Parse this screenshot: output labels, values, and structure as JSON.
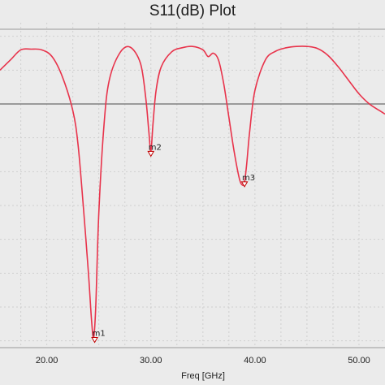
{
  "chart_data": {
    "type": "line",
    "title": "S11(dB) Plot",
    "xlabel": "Freq [GHz]",
    "ylabel": "",
    "xlim": [
      15.5,
      52.5
    ],
    "ylim": [
      -46,
      2
    ],
    "x_ticks": [
      {
        "value": 20,
        "label": "20.00"
      },
      {
        "value": 30,
        "label": "30.00"
      },
      {
        "value": 40,
        "label": "40.00"
      },
      {
        "value": 50,
        "label": "50.00"
      }
    ],
    "y_gridlines": [
      -45,
      -40,
      -35,
      -30,
      -25,
      -20,
      -15,
      -10,
      -5,
      0
    ],
    "reference_line": -10,
    "grid": true,
    "colors": {
      "trace": "#e8334b",
      "reference": "#808080",
      "marker": "#c00000",
      "grid": "#cfcfcf",
      "background": "#ebebeb"
    },
    "series": [
      {
        "name": "",
        "x": [
          15.5,
          16.5,
          17.5,
          18.5,
          19.5,
          20.5,
          21.5,
          22.5,
          23.0,
          23.5,
          24.0,
          24.3,
          24.5,
          24.7,
          25.0,
          25.5,
          26.0,
          27.0,
          28.0,
          29.0,
          29.5,
          29.8,
          30.0,
          30.2,
          30.5,
          31.0,
          32.0,
          33.0,
          34.0,
          35.0,
          35.5,
          36.0,
          36.5,
          37.0,
          37.5,
          38.0,
          38.5,
          38.8,
          39.0,
          39.2,
          39.5,
          40.0,
          41.0,
          42.0,
          43.0,
          44.0,
          45.0,
          46.0,
          47.0,
          48.0,
          49.0,
          50.0,
          51.0,
          52.0,
          52.5
        ],
        "values": [
          -5.0,
          -3.5,
          -2.0,
          -1.9,
          -2.0,
          -3.0,
          -6.0,
          -11.0,
          -16.0,
          -25.0,
          -35.0,
          -42.0,
          -44.5,
          -40.0,
          -26.0,
          -13.0,
          -6.5,
          -2.5,
          -1.6,
          -4.0,
          -9.0,
          -14.0,
          -17.0,
          -13.0,
          -8.0,
          -4.5,
          -2.3,
          -1.7,
          -1.5,
          -2.0,
          -3.0,
          -2.5,
          -3.5,
          -7.0,
          -12.0,
          -17.0,
          -21.0,
          -22.0,
          -21.5,
          -19.0,
          -14.0,
          -8.0,
          -3.5,
          -2.2,
          -1.7,
          -1.5,
          -1.5,
          -1.8,
          -2.8,
          -4.5,
          -6.5,
          -8.5,
          -10.0,
          -11.0,
          -11.5
        ]
      }
    ],
    "markers": [
      {
        "label": "m1",
        "x": 24.6,
        "y": -44.5
      },
      {
        "label": "m2",
        "x": 30.0,
        "y": -17.0
      },
      {
        "label": "m3",
        "x": 39.0,
        "y": -21.5
      }
    ]
  }
}
